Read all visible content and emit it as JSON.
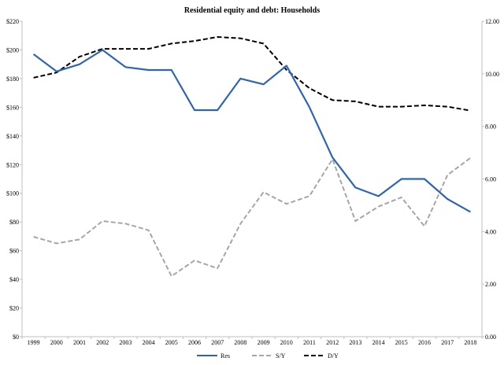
{
  "chart_data": {
    "type": "line",
    "title": "Residential equity and debt: Households",
    "x": [
      "1999",
      "2000",
      "2001",
      "2002",
      "2003",
      "2004",
      "2005",
      "2006",
      "2007",
      "2008",
      "2009",
      "2010",
      "2011",
      "2012",
      "2013",
      "2014",
      "2015",
      "2016",
      "2017",
      "2018"
    ],
    "left_axis": {
      "ylim": [
        0,
        220
      ],
      "tick_labels": [
        "$0",
        "$20",
        "$40",
        "$60",
        "$80",
        "$100",
        "$120",
        "$140",
        "$160",
        "$180",
        "$200",
        "$220"
      ],
      "tick_values": [
        0,
        20,
        40,
        60,
        80,
        100,
        120,
        140,
        160,
        180,
        200,
        220
      ]
    },
    "right_axis": {
      "ylim": [
        0,
        12
      ],
      "tick_labels": [
        "0.00",
        "2.00",
        "4.00",
        "6.00",
        "8.00",
        "10.00",
        "12.00"
      ],
      "tick_values": [
        0,
        2,
        4,
        6,
        8,
        10,
        12
      ]
    },
    "series": [
      {
        "name": "Res",
        "axis": "left",
        "color": "#2e64b8",
        "dash": "solid",
        "values": [
          197,
          185,
          190,
          200,
          188,
          186,
          186,
          158,
          158,
          180,
          176,
          189,
          160,
          125,
          104,
          98,
          110,
          110,
          96,
          87
        ]
      },
      {
        "name": "S/Y",
        "axis": "right",
        "color": "#a6a6a6",
        "dash": "dashed",
        "values": [
          3.8,
          3.55,
          3.7,
          4.4,
          4.3,
          4.05,
          2.3,
          2.9,
          2.6,
          4.3,
          5.5,
          5.05,
          5.35,
          6.75,
          4.4,
          4.95,
          5.3,
          4.2,
          6.15,
          6.8
        ]
      },
      {
        "name": "D/Y",
        "axis": "right",
        "color": "#000000",
        "dash": "dashed",
        "values": [
          9.85,
          10.05,
          10.65,
          10.95,
          10.95,
          10.95,
          11.15,
          11.25,
          11.4,
          11.35,
          11.15,
          10.15,
          9.45,
          9.0,
          8.95,
          8.75,
          8.75,
          8.8,
          8.75,
          8.6
        ]
      }
    ],
    "legend": [
      "Res",
      "S/Y",
      "D/Y"
    ],
    "legend_position": "bottom-center",
    "grid": false
  }
}
